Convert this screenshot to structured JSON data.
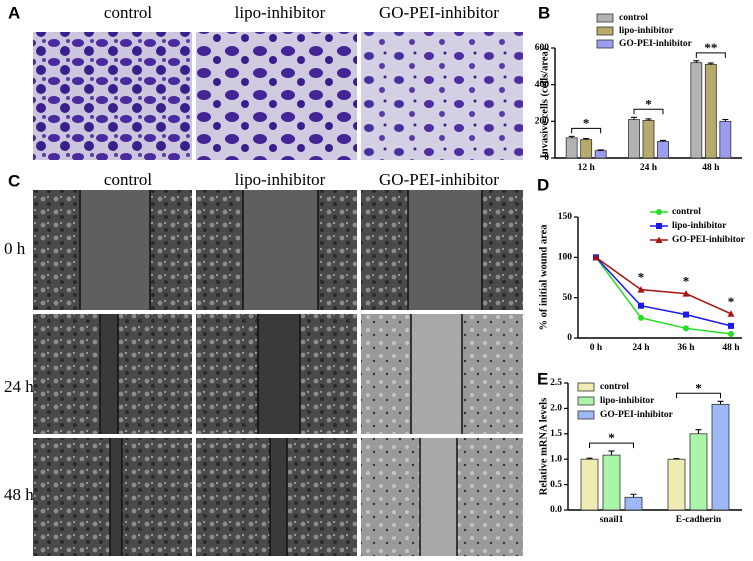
{
  "figure": {
    "panel_labels": [
      "A",
      "B",
      "C",
      "D",
      "E"
    ],
    "column_headers_a": [
      "control",
      "lipo-inhibitor",
      "GO-PEI-inhibitor"
    ],
    "column_headers_c": [
      "control",
      "lipo-inhibitor",
      "GO-PEI-inhibitor"
    ],
    "row_labels": [
      "0 h",
      "24 h",
      "48 h"
    ]
  },
  "chart_data": [
    {
      "type": "bar",
      "y_label": "Invasive cells (cells/area)",
      "categories": [
        "12 h",
        "24 h",
        "48 h"
      ],
      "series": [
        {
          "name": "control",
          "color": "#b3b3b3",
          "values": [
            110,
            210,
            520
          ],
          "errors": [
            8,
            12,
            10
          ]
        },
        {
          "name": "lipo-inhibitor",
          "color": "#b8aa6c",
          "values": [
            100,
            205,
            510
          ],
          "errors": [
            6,
            8,
            8
          ]
        },
        {
          "name": "GO-PEI-inhibitor",
          "color": "#9c9cf0",
          "values": [
            40,
            90,
            200
          ],
          "errors": [
            4,
            6,
            10
          ]
        }
      ],
      "ylim": [
        0,
        600
      ],
      "yticks": [
        0,
        200,
        400,
        600
      ],
      "annotations": [
        "*",
        "*",
        "**"
      ]
    },
    {
      "type": "line",
      "y_label": "% of initial wound area",
      "categories": [
        "0 h",
        "24 h",
        "36 h",
        "48 h"
      ],
      "series": [
        {
          "name": "control",
          "color": "#22dd22",
          "marker": "circle",
          "values": [
            100,
            25,
            12,
            5
          ]
        },
        {
          "name": "lipo-inhibitor",
          "color": "#1a1aee",
          "marker": "square",
          "values": [
            100,
            40,
            29,
            15
          ]
        },
        {
          "name": "GO-PEI-inhibitor",
          "color": "#aa1111",
          "marker": "triangle",
          "values": [
            100,
            60,
            55,
            30
          ]
        }
      ],
      "ylim": [
        0,
        150
      ],
      "yticks": [
        0,
        50,
        100,
        150
      ],
      "annotations": [
        "*",
        "*",
        "*"
      ]
    },
    {
      "type": "bar",
      "y_label": "Relative mRNA levels",
      "categories": [
        "snail1",
        "E-cadherin"
      ],
      "series": [
        {
          "name": "control",
          "color": "#efebb3",
          "values": [
            1.0,
            1.0
          ],
          "errors": [
            0.02,
            0.01
          ]
        },
        {
          "name": "lipo-inhibitor",
          "color": "#aaf5a8",
          "values": [
            1.08,
            1.5
          ],
          "errors": [
            0.08,
            0.08
          ]
        },
        {
          "name": "GO-PEI-inhibitor",
          "color": "#9cb9f5",
          "values": [
            0.25,
            2.08
          ],
          "errors": [
            0.06,
            0.06
          ]
        }
      ],
      "ylim": [
        0,
        2.5
      ],
      "yticks": [
        {
          "value": 0,
          "label": "0.0"
        },
        {
          "value": 0.5,
          "label": "0.5"
        },
        {
          "value": 1,
          "label": "1.0"
        },
        {
          "value": 1.5,
          "label": "1.5"
        },
        {
          "value": 2,
          "label": "2.0"
        },
        {
          "value": 2.5,
          "label": "2.5"
        }
      ],
      "annotations": [
        "*",
        "*"
      ]
    }
  ]
}
